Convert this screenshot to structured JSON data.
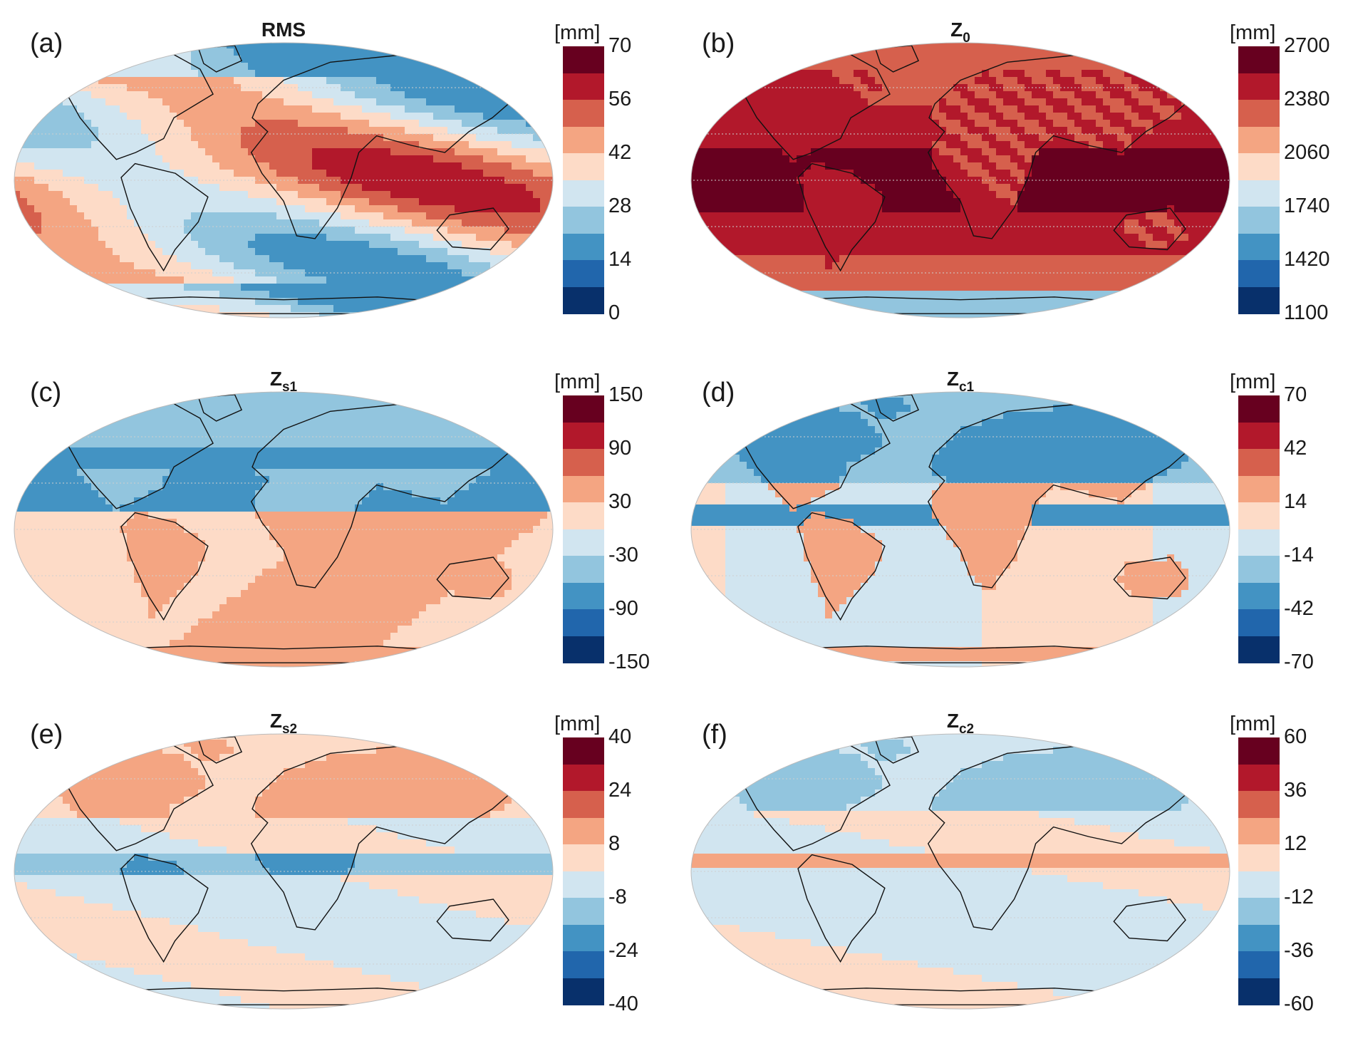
{
  "palette": [
    "#08306b",
    "#2166ac",
    "#4393c3",
    "#92c5de",
    "#d1e5f0",
    "#fddbc7",
    "#f4a582",
    "#d6604d",
    "#b2182b",
    "#67001f"
  ],
  "panels": [
    {
      "label": "(a)",
      "title": "RMS",
      "title_sub": "",
      "unit": "[mm]",
      "ticks": [
        "70",
        "56",
        "42",
        "28",
        "14",
        "0"
      ],
      "style": "rms"
    },
    {
      "label": "(b)",
      "title": "Z",
      "title_sub": "0",
      "unit": "[mm]",
      "ticks": [
        "2700",
        "2380",
        "2060",
        "1740",
        "1420",
        "1100"
      ],
      "style": "z0"
    },
    {
      "label": "(c)",
      "title": "Z",
      "title_sub": "s1",
      "unit": "[mm]",
      "ticks": [
        "150",
        "90",
        "30",
        "-30",
        "-90",
        "-150"
      ],
      "style": "zs1"
    },
    {
      "label": "(d)",
      "title": "Z",
      "title_sub": "c1",
      "unit": "[mm]",
      "ticks": [
        "70",
        "42",
        "14",
        "-14",
        "-42",
        "-70"
      ],
      "style": "zc1"
    },
    {
      "label": "(e)",
      "title": "Z",
      "title_sub": "s2",
      "unit": "[mm]",
      "ticks": [
        "40",
        "24",
        "8",
        "-8",
        "-24",
        "-40"
      ],
      "style": "zs2"
    },
    {
      "label": "(f)",
      "title": "Z",
      "title_sub": "c2",
      "unit": "[mm]",
      "ticks": [
        "60",
        "36",
        "12",
        "-12",
        "-36",
        "-60"
      ],
      "style": "zc2"
    }
  ]
}
